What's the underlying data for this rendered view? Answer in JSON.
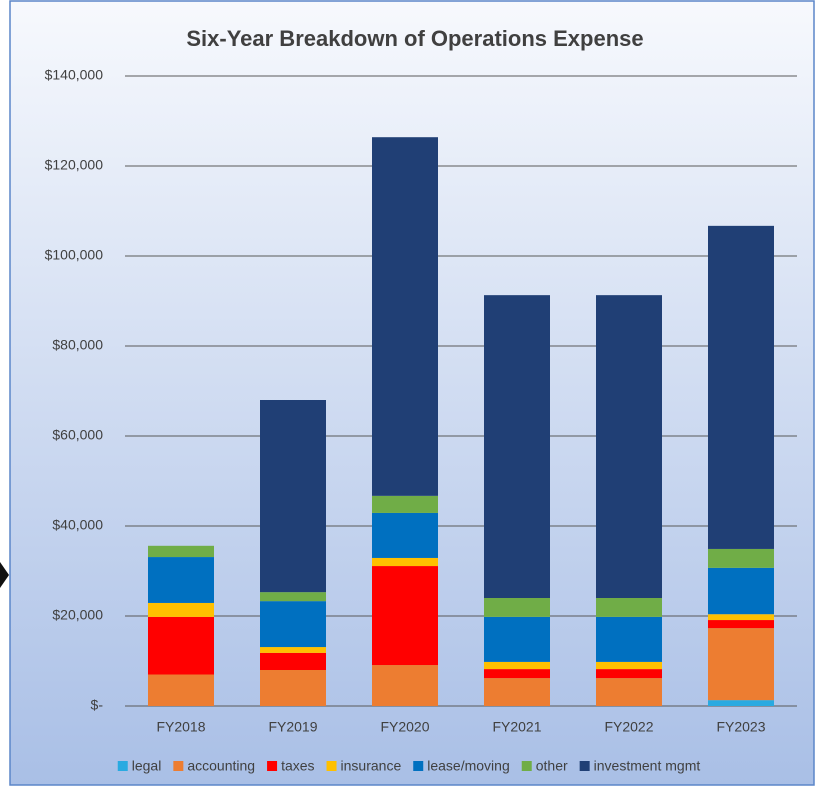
{
  "chart_data": {
    "type": "stacked_bar",
    "title": "Six-Year Breakdown of Operations Expense",
    "categories": [
      "FY2018",
      "FY2019",
      "FY2020",
      "FY2021",
      "FY2022",
      "FY2023"
    ],
    "series": [
      {
        "name": "legal",
        "color": "#29aae1",
        "values": [
          0,
          0,
          0,
          0,
          0,
          1300
        ]
      },
      {
        "name": "accounting",
        "color": "#ed7d31",
        "values": [
          7000,
          8000,
          9100,
          6200,
          6200,
          16000
        ]
      },
      {
        "name": "taxes",
        "color": "#ff0000",
        "values": [
          12800,
          3800,
          22000,
          2000,
          2000,
          1800
        ]
      },
      {
        "name": "insurance",
        "color": "#ffc000",
        "values": [
          3100,
          1300,
          1800,
          1600,
          1600,
          1300
        ]
      },
      {
        "name": "lease/moving",
        "color": "#0070c0",
        "values": [
          10200,
          10200,
          10000,
          10000,
          10000,
          10300
        ]
      },
      {
        "name": "other",
        "color": "#70ad47",
        "values": [
          2500,
          2000,
          3800,
          4200,
          4200,
          4200
        ]
      },
      {
        "name": "investment mgmt",
        "color": "#203f75",
        "values": [
          0,
          42700,
          79700,
          67300,
          67300,
          71800
        ]
      }
    ],
    "ylim": [
      0,
      140000
    ],
    "yticks": [
      {
        "value": 0,
        "label": "$-"
      },
      {
        "value": 20000,
        "label": "$20,000"
      },
      {
        "value": 40000,
        "label": "$40,000"
      },
      {
        "value": 60000,
        "label": "$60,000"
      },
      {
        "value": 80000,
        "label": "$80,000"
      },
      {
        "value": 100000,
        "label": "$100,000"
      },
      {
        "value": 120000,
        "label": "$120,000"
      },
      {
        "value": 140000,
        "label": "$140,000"
      }
    ],
    "grid": true,
    "legend": "bottom"
  }
}
